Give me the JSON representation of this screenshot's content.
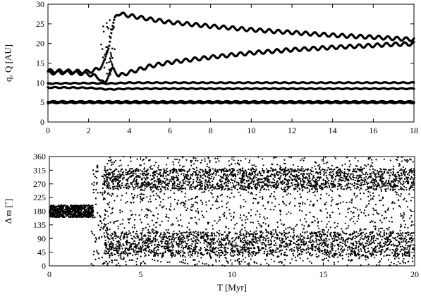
{
  "chart_data": [
    {
      "type": "scatter",
      "title": "",
      "xlabel": "",
      "ylabel": "q, Q [AU]",
      "xlim": [
        0,
        18
      ],
      "ylim": [
        0,
        30
      ],
      "xticks": [
        0,
        2,
        4,
        6,
        8,
        10,
        12,
        14,
        16,
        18
      ],
      "yticks": [
        0,
        5,
        10,
        15,
        20,
        25,
        30
      ],
      "grid": false,
      "legend": "none",
      "series": [
        {
          "x": [
            0.0,
            1.0,
            2.0,
            2.5,
            2.8,
            3.0,
            3.1,
            3.2,
            3.3,
            3.4,
            3.5,
            4.0,
            5.0,
            6.0,
            8.0,
            10.0,
            12.0,
            14.0,
            16.0,
            17.0,
            18.0
          ],
          "y": [
            13.0,
            12.9,
            12.8,
            13.5,
            15.5,
            19.5,
            22.5,
            24.5,
            26.5,
            27.5,
            27.6,
            27.1,
            26.2,
            25.4,
            24.4,
            23.5,
            22.8,
            22.1,
            21.6,
            21.3,
            21.0
          ]
        },
        {
          "x": [
            0.0,
            1.0,
            2.0,
            2.5,
            2.8,
            3.0,
            3.2,
            3.5,
            4.0,
            5.0,
            6.0,
            8.0,
            10.0,
            12.0,
            14.0,
            16.0,
            17.0,
            18.0
          ],
          "y": [
            12.5,
            12.7,
            12.2,
            11.3,
            9.5,
            12.5,
            13.5,
            11.8,
            12.6,
            14.2,
            15.2,
            16.5,
            17.6,
            18.4,
            19.0,
            19.5,
            19.8,
            19.9
          ]
        },
        {
          "x": [
            0.0,
            2.0,
            3.0,
            4.0,
            6.0,
            8.0,
            10.0,
            12.0,
            14.0,
            16.0,
            18.0
          ],
          "y": [
            9.8,
            9.9,
            9.8,
            10.0,
            10.0,
            10.0,
            10.0,
            10.0,
            10.0,
            10.0,
            10.0
          ]
        },
        {
          "x": [
            0.0,
            2.0,
            3.0,
            4.0,
            6.0,
            8.0,
            10.0,
            12.0,
            14.0,
            16.0,
            18.0
          ],
          "y": [
            8.8,
            8.7,
            8.3,
            8.5,
            8.5,
            8.5,
            8.5,
            8.5,
            8.5,
            8.5,
            8.5
          ]
        },
        {
          "x": [
            0.0,
            2.0,
            3.0,
            4.0,
            6.0,
            8.0,
            10.0,
            12.0,
            14.0,
            16.0,
            18.0
          ],
          "y": [
            5.2,
            5.2,
            5.2,
            5.2,
            5.2,
            5.2,
            5.2,
            5.2,
            5.2,
            5.2,
            5.2
          ]
        },
        {
          "x": [
            0.0,
            2.0,
            3.0,
            4.0,
            6.0,
            8.0,
            10.0,
            12.0,
            14.0,
            16.0,
            18.0
          ],
          "y": [
            4.9,
            4.9,
            4.9,
            4.9,
            4.9,
            4.9,
            4.9,
            4.9,
            4.9,
            4.9,
            4.9
          ]
        }
      ]
    },
    {
      "type": "scatter",
      "title": "",
      "xlabel": "T [Myr]",
      "ylabel": "Δ ϖ [˚]",
      "xlim": [
        0,
        20
      ],
      "ylim": [
        0,
        360
      ],
      "xticks": [
        0,
        5,
        10,
        15,
        20
      ],
      "yticks": [
        0,
        45,
        90,
        135,
        180,
        225,
        270,
        315,
        360
      ],
      "grid": false,
      "legend": "none",
      "series": [
        {
          "x": [
            0.0,
            1.0,
            2.0,
            2.4,
            2.6,
            2.8,
            3.0,
            3.2,
            5.0,
            10.0,
            15.0,
            20.0
          ],
          "y": [
            180,
            182,
            178,
            175,
            165,
            180,
            70,
            290,
            285,
            290,
            290,
            285
          ]
        },
        {
          "x": [
            3.0,
            5.0,
            10.0,
            15.0,
            20.0
          ],
          "y": [
            60,
            75,
            75,
            75,
            75
          ]
        }
      ]
    }
  ]
}
